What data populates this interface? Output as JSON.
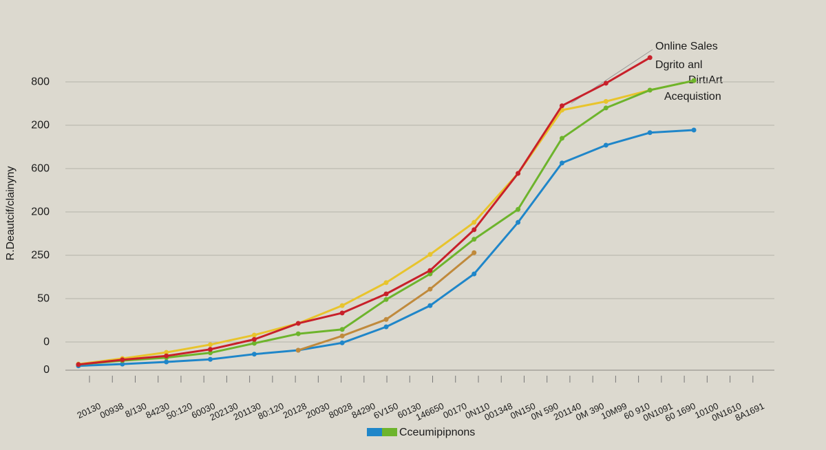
{
  "chart_data": {
    "type": "line",
    "y_label": "R.Deautcif/clainyny",
    "annotations": [
      "Online Sales",
      "Dgrito anl",
      "DirtıArt",
      "Acequistion"
    ],
    "legend_label": "Cceumipipnons",
    "legend_colors": [
      "#1f86c9",
      "#6db42c"
    ],
    "categories": [
      null,
      null,
      null,
      null,
      null,
      null,
      null,
      null,
      null,
      null,
      null,
      null,
      null,
      null,
      null
    ],
    "x_labels": [
      "20130",
      "00938",
      "8/130",
      "84230",
      "50:120",
      "60030",
      "202130",
      "201130",
      "80:120",
      "20128",
      "20030",
      "80028",
      "84290",
      "6V150",
      "60130",
      "146650",
      "00170",
      "0N110",
      "001348",
      "0N150",
      "0N 590",
      "201140",
      "0M 390",
      "10M99",
      "60 910",
      "0N1091",
      "60 1690",
      "10100",
      "0N1610",
      "8A1691"
    ],
    "ylim": [
      0,
      700
    ],
    "yticks": [
      0,
      {
        "value": 65,
        "label": "0"
      },
      {
        "value": 165,
        "label": "50"
      },
      {
        "value": 265,
        "label": "250"
      },
      {
        "value": 365,
        "label": "200"
      },
      {
        "value": 465,
        "label": "600"
      },
      {
        "value": 565,
        "label": "200"
      },
      {
        "value": 665,
        "label": "800"
      }
    ],
    "grid": true,
    "series": [
      {
        "color": "#1f86c9",
        "values": [
          10,
          14,
          19,
          25,
          37,
          46,
          63,
          100,
          149,
          222,
          341,
          478,
          519,
          548,
          554
        ]
      },
      {
        "color": "#c08a3c",
        "values": [
          null,
          null,
          null,
          null,
          null,
          46,
          79,
          117,
          187,
          271,
          null,
          null,
          null,
          null,
          null
        ]
      },
      {
        "color": "#e8c42c",
        "values": [
          14,
          27,
          41,
          59,
          81,
          108,
          149,
          202,
          267,
          341,
          454,
          600,
          620,
          646,
          668
        ]
      },
      {
        "color": "#6db42c",
        "values": [
          13,
          22,
          29,
          40,
          62,
          84,
          94,
          163,
          222,
          302,
          371,
          535,
          605,
          646,
          668
        ]
      },
      {
        "color": "#c8202a",
        "values": [
          13,
          24,
          33,
          48,
          71,
          108,
          132,
          176,
          230,
          324,
          454,
          610,
          662,
          721,
          null
        ]
      }
    ]
  }
}
